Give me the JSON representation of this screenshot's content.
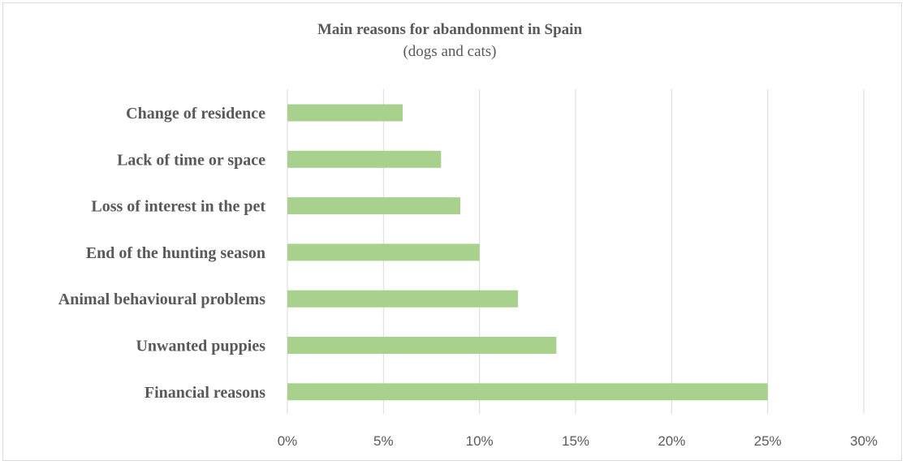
{
  "chart_data": {
    "type": "bar",
    "orientation": "horizontal",
    "title": "Main reasons for abandonment in Spain",
    "subtitle": "(dogs and cats)",
    "categories": [
      "Change of residence",
      "Lack of time or space",
      "Loss of interest in the pet",
      "End of the hunting season",
      "Animal behavioural problems",
      "Unwanted puppies",
      "Financial reasons"
    ],
    "values": [
      6,
      8,
      9,
      10,
      12,
      14,
      25
    ],
    "xticks": [
      "0%",
      "5%",
      "10%",
      "15%",
      "20%",
      "25%",
      "30%"
    ],
    "xlim": [
      0,
      30
    ],
    "grid": true,
    "bar_color": "#a9d18e",
    "grid_color": "#d9d9d9"
  }
}
